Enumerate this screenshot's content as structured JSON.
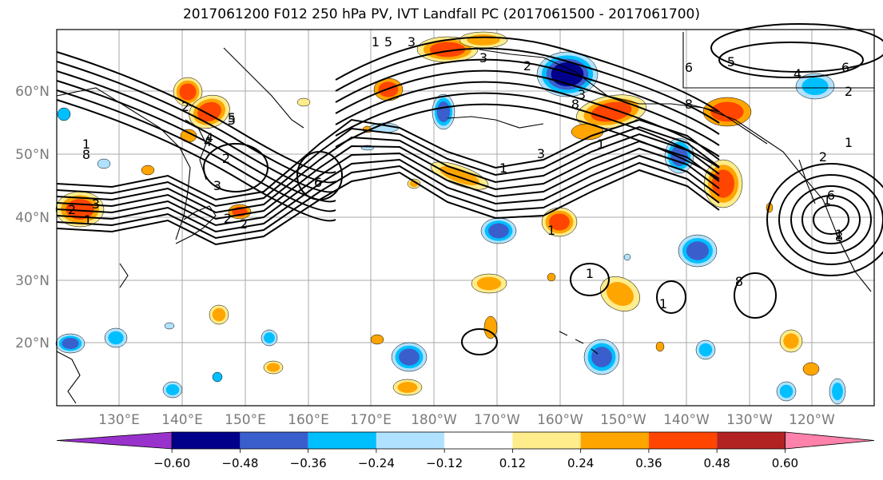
{
  "title": "2017061200 F012 250 hPa PV, IVT Landfall PC (2017061500 - 2017061700)",
  "lat_labels": [
    "60°N",
    "50°N",
    "40°N",
    "30°N",
    "20°N"
  ],
  "lon_labels": [
    "130°E",
    "140°E",
    "150°E",
    "160°E",
    "170°E",
    "180°W",
    "170°W",
    "160°W",
    "150°W",
    "140°W",
    "130°W",
    "120°W"
  ],
  "colorbar": {
    "tick_labels": [
      "−0.60",
      "−0.48",
      "−0.36",
      "−0.24",
      "−0.12",
      "0.12",
      "0.24",
      "0.36",
      "0.48",
      "0.60"
    ],
    "colors": [
      "#9932cc",
      "#00008b",
      "#3a5fcd",
      "#00bfff",
      "#b0e2ff",
      "#ffffff",
      "#ffec8b",
      "#ffa500",
      "#ff4500",
      "#b22222",
      "#ff82ab"
    ]
  },
  "contour_labels": [
    "5",
    "3",
    "1",
    "2",
    "5",
    "4",
    "2",
    "3",
    "1",
    "8",
    "6",
    "3",
    "1",
    "2",
    "8",
    "3",
    "6",
    "8",
    "5",
    "1",
    "3",
    "4",
    "6",
    "2",
    "1",
    "2",
    "6",
    "8",
    "1",
    "1",
    "1",
    "1",
    "8",
    "2",
    "1",
    "2",
    "3",
    "2",
    "1",
    "4",
    "5"
  ]
}
